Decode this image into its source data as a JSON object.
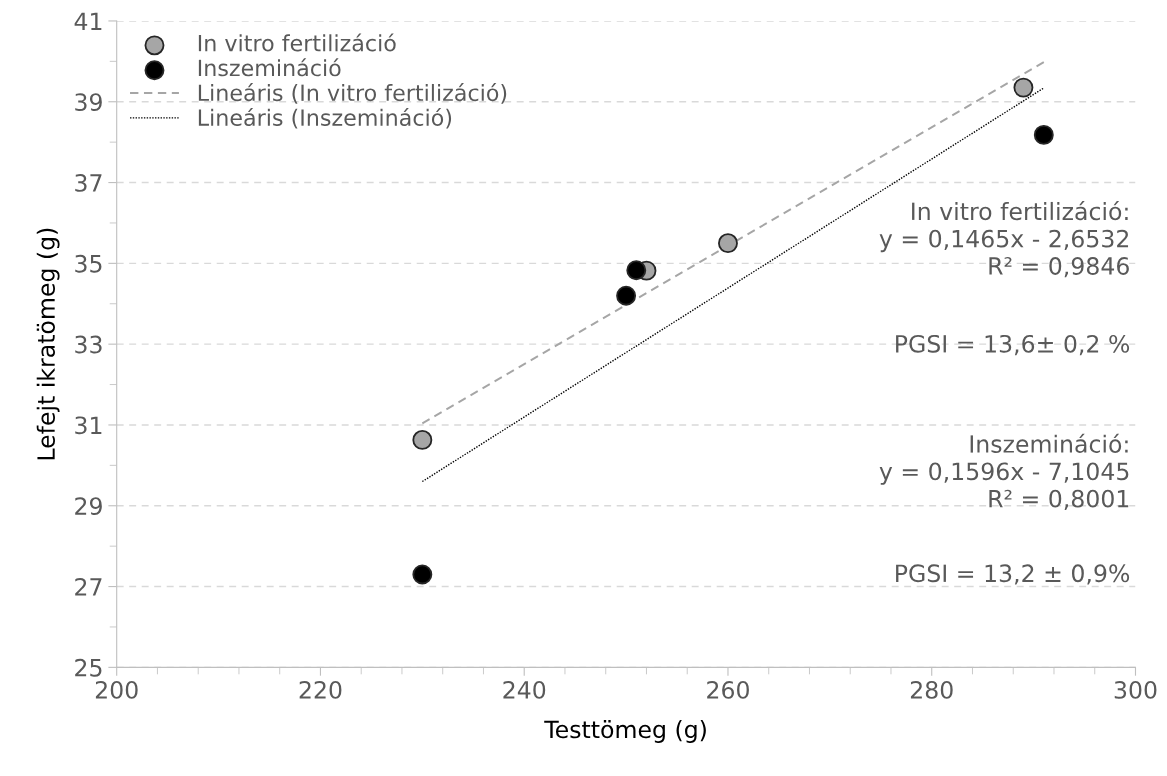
{
  "chart_data": {
    "type": "scatter",
    "xlabel": "Testtömeg (g)",
    "ylabel": "Lefejt ikratömeg (g)",
    "xlim": [
      200,
      300
    ],
    "xticks": [
      200,
      220,
      240,
      260,
      280,
      300
    ],
    "ylim": [
      25,
      41
    ],
    "yticks": [
      25,
      27,
      29,
      31,
      33,
      35,
      37,
      39,
      41
    ],
    "grid": "y",
    "legend": "top left",
    "marker": "circle",
    "series": [
      {
        "name": "In vitro fertilizáció",
        "color": "#a6a6a6",
        "x": [
          230,
          252,
          260,
          289
        ],
        "values": [
          30.63,
          34.82,
          35.5,
          39.35
        ]
      },
      {
        "name": "Inszemináció",
        "color": "#000000",
        "x": [
          230,
          250,
          251,
          291
        ],
        "values": [
          27.3,
          34.2,
          34.83,
          38.18
        ]
      },
      {
        "name": "Lineáris (In vitro fertilizáció)",
        "type": "line",
        "marker": "none",
        "line_style": "dashed",
        "color": "#a6a6a6",
        "x": [
          230,
          291
        ],
        "values": [
          31.04,
          39.98
        ]
      },
      {
        "name": "Lineáris (Inszemináció)",
        "type": "line",
        "marker": "none",
        "line_style": "dotted",
        "color": "#000000",
        "x": [
          230,
          291
        ],
        "values": [
          29.6,
          39.34
        ]
      }
    ],
    "annotations": [
      "In vitro fertilizáció:\ny = 0,1465x - 2,6532\nR² = 0,9846",
      "PGSI = 13,6± 0,2 %",
      "Inszemináció:\ny = 0,1596x - 7,1045\nR² = 0,8001",
      "PGSI = 13,2 ± 0,9%"
    ]
  }
}
